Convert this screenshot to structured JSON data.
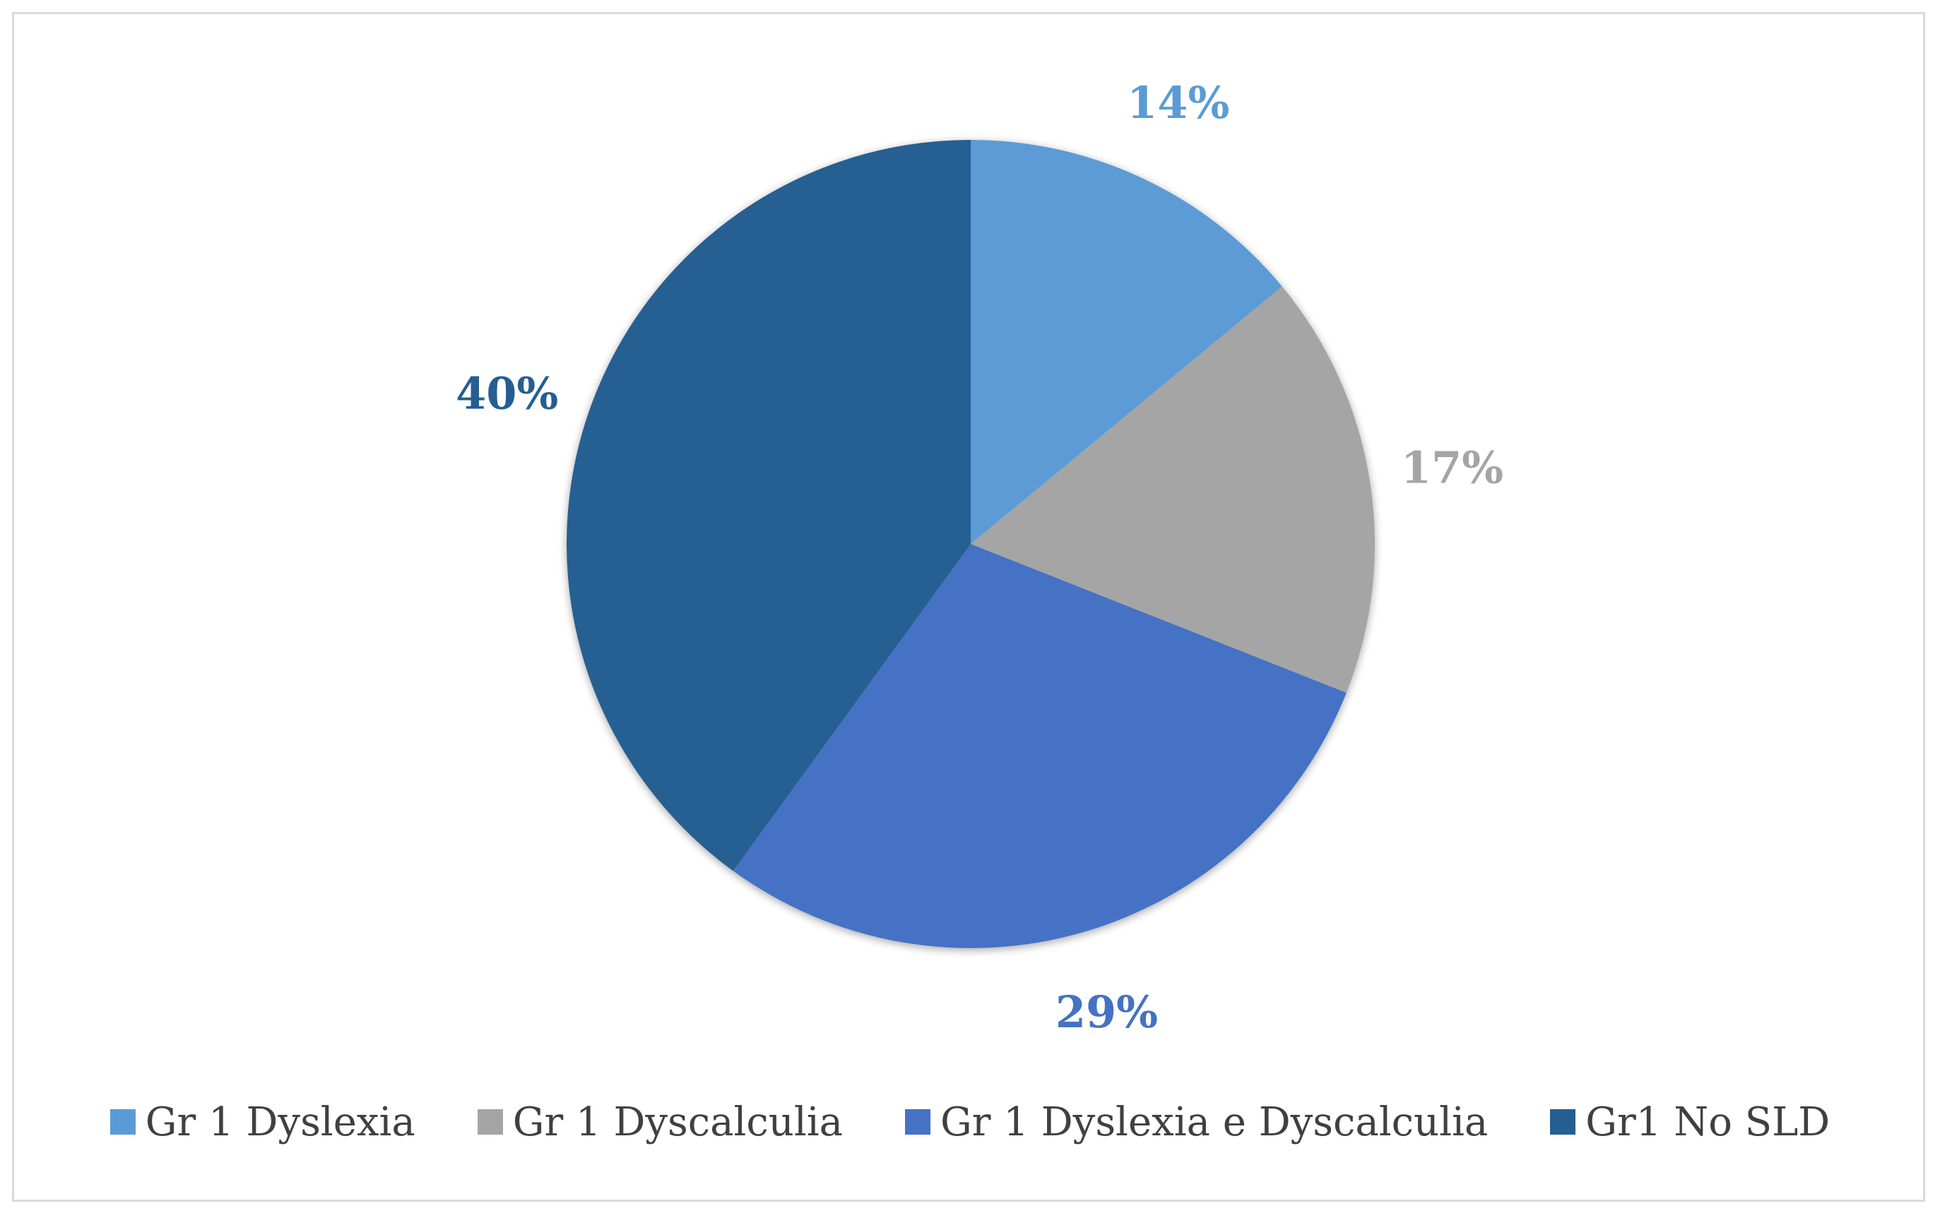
{
  "chart_data": {
    "type": "pie",
    "title": "",
    "categories": [
      "Gr 1 Dyslexia",
      "Gr 1 Dyscalculia",
      "Gr 1 Dyslexia e Dyscalculia",
      "Gr1 No SLD"
    ],
    "values": [
      14,
      17,
      29,
      40
    ],
    "data_labels": [
      "14%",
      "17%",
      "29%",
      "40%"
    ],
    "colors": [
      "#5b9bd5",
      "#a5a5a5",
      "#4472c4",
      "#255e91"
    ],
    "legend_position": "bottom",
    "start_angle": "12 o'clock",
    "direction": "clockwise"
  }
}
